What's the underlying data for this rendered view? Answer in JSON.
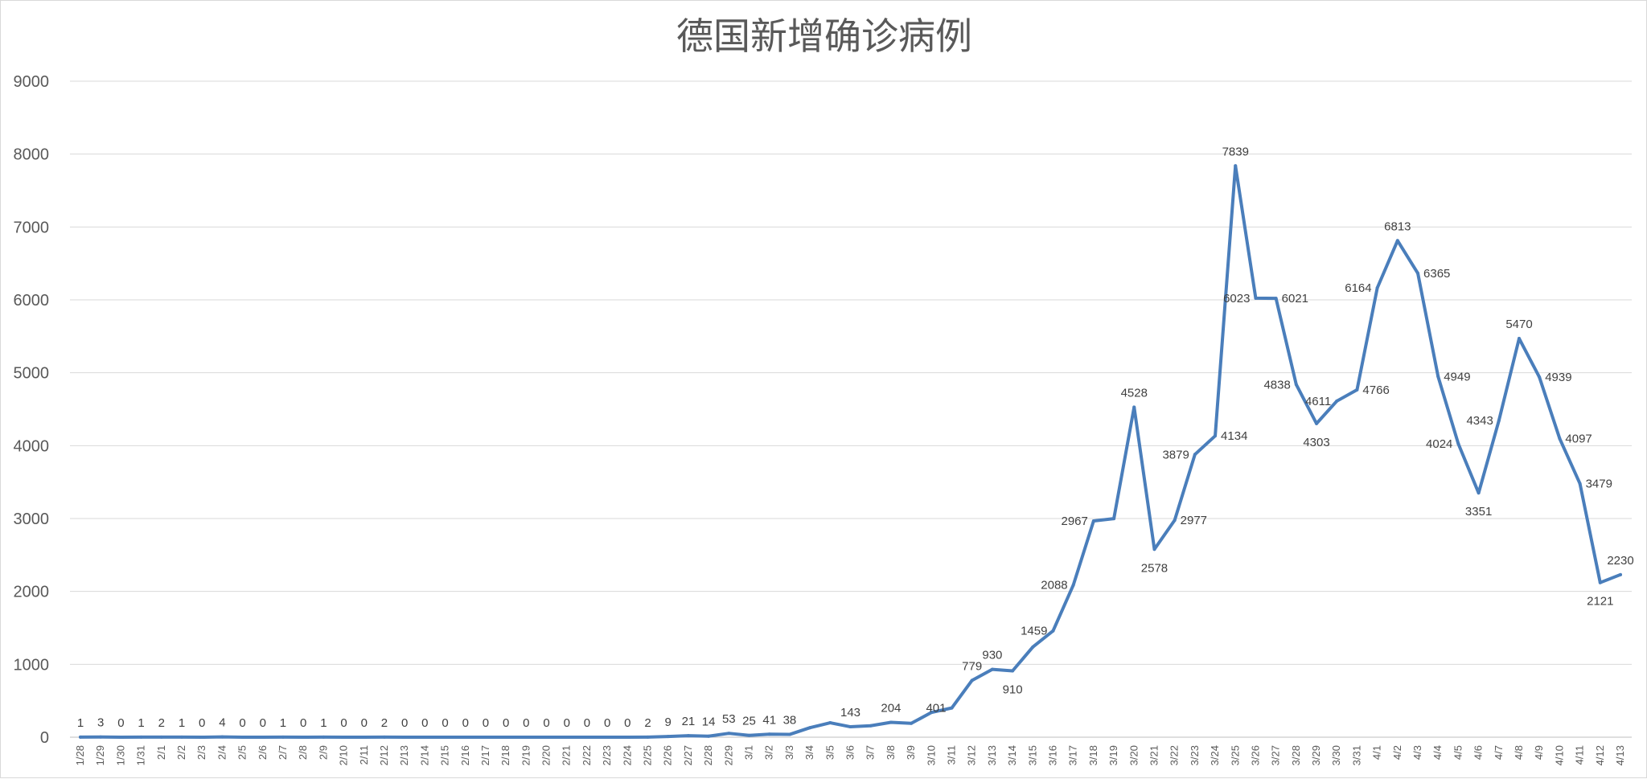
{
  "chart_data": {
    "type": "line",
    "title": "德国新增确诊病例",
    "xlabel": "",
    "ylabel": "",
    "ylim": [
      0,
      9000
    ],
    "yticks": [
      0,
      1000,
      2000,
      3000,
      4000,
      5000,
      6000,
      7000,
      8000,
      9000
    ],
    "grid": true,
    "legend": "none",
    "colors": {
      "line": "#4a7ebb",
      "grid": "#d9d9d9",
      "text": "#595959"
    },
    "categories": [
      "1/28",
      "1/29",
      "1/30",
      "1/31",
      "2/1",
      "2/2",
      "2/3",
      "2/4",
      "2/5",
      "2/6",
      "2/7",
      "2/8",
      "2/9",
      "2/10",
      "2/11",
      "2/12",
      "2/13",
      "2/14",
      "2/15",
      "2/16",
      "2/17",
      "2/18",
      "2/19",
      "2/20",
      "2/21",
      "2/22",
      "2/23",
      "2/24",
      "2/25",
      "2/26",
      "2/27",
      "2/28",
      "2/29",
      "3/1",
      "3/2",
      "3/3",
      "3/4",
      "3/5",
      "3/6",
      "3/7",
      "3/8",
      "3/9",
      "3/10",
      "3/11",
      "3/12",
      "3/13",
      "3/14",
      "3/15",
      "3/16",
      "3/17",
      "3/18",
      "3/19",
      "3/20",
      "3/21",
      "3/22",
      "3/23",
      "3/24",
      "3/25",
      "3/26",
      "3/27",
      "3/28",
      "3/29",
      "3/30",
      "3/31",
      "4/1",
      "4/2",
      "4/3",
      "4/4",
      "4/5",
      "4/6",
      "4/7",
      "4/8",
      "4/9",
      "4/10",
      "4/11",
      "4/12",
      "4/13"
    ],
    "values": [
      1,
      3,
      0,
      1,
      2,
      1,
      0,
      4,
      0,
      0,
      1,
      0,
      1,
      0,
      0,
      2,
      0,
      0,
      0,
      0,
      0,
      0,
      0,
      0,
      0,
      0,
      0,
      0,
      2,
      9,
      21,
      14,
      53,
      25,
      41,
      38,
      130,
      198,
      143,
      157,
      204,
      190,
      340,
      401,
      779,
      930,
      910,
      1237,
      1459,
      2088,
      2967,
      2999,
      4528,
      2578,
      2977,
      3879,
      4134,
      7839,
      6023,
      6021,
      4838,
      4303,
      4611,
      4766,
      6164,
      6813,
      6365,
      4949,
      4024,
      3351,
      4343,
      5470,
      4939,
      4097,
      3479,
      2121,
      2230
    ],
    "data_labels": [
      {
        "i": 0,
        "text": "1",
        "pos": "above"
      },
      {
        "i": 1,
        "text": "3",
        "pos": "above"
      },
      {
        "i": 2,
        "text": "0",
        "pos": "above"
      },
      {
        "i": 3,
        "text": "1",
        "pos": "above"
      },
      {
        "i": 4,
        "text": "2",
        "pos": "above"
      },
      {
        "i": 5,
        "text": "1",
        "pos": "above"
      },
      {
        "i": 6,
        "text": "0",
        "pos": "above"
      },
      {
        "i": 7,
        "text": "4",
        "pos": "above"
      },
      {
        "i": 8,
        "text": "0",
        "pos": "above"
      },
      {
        "i": 9,
        "text": "0",
        "pos": "above"
      },
      {
        "i": 10,
        "text": "1",
        "pos": "above"
      },
      {
        "i": 11,
        "text": "0",
        "pos": "above"
      },
      {
        "i": 12,
        "text": "1",
        "pos": "above"
      },
      {
        "i": 13,
        "text": "0",
        "pos": "above"
      },
      {
        "i": 14,
        "text": "0",
        "pos": "above"
      },
      {
        "i": 15,
        "text": "2",
        "pos": "above"
      },
      {
        "i": 16,
        "text": "0",
        "pos": "above"
      },
      {
        "i": 17,
        "text": "0",
        "pos": "above"
      },
      {
        "i": 18,
        "text": "0",
        "pos": "above"
      },
      {
        "i": 19,
        "text": "0",
        "pos": "above"
      },
      {
        "i": 20,
        "text": "0",
        "pos": "above"
      },
      {
        "i": 21,
        "text": "0",
        "pos": "above"
      },
      {
        "i": 22,
        "text": "0",
        "pos": "above"
      },
      {
        "i": 23,
        "text": "0",
        "pos": "above"
      },
      {
        "i": 24,
        "text": "0",
        "pos": "above"
      },
      {
        "i": 25,
        "text": "0",
        "pos": "above"
      },
      {
        "i": 26,
        "text": "0",
        "pos": "above"
      },
      {
        "i": 27,
        "text": "0",
        "pos": "above"
      },
      {
        "i": 28,
        "text": "2",
        "pos": "above"
      },
      {
        "i": 29,
        "text": "9",
        "pos": "above"
      },
      {
        "i": 30,
        "text": "21",
        "pos": "above"
      },
      {
        "i": 31,
        "text": "14",
        "pos": "above"
      },
      {
        "i": 32,
        "text": "53",
        "pos": "above"
      },
      {
        "i": 33,
        "text": "25",
        "pos": "above"
      },
      {
        "i": 34,
        "text": "41",
        "pos": "above"
      },
      {
        "i": 35,
        "text": "38",
        "pos": "above"
      },
      {
        "i": 38,
        "text": "143",
        "pos": "above"
      },
      {
        "i": 40,
        "text": "204",
        "pos": "above"
      },
      {
        "i": 43,
        "text": "401",
        "pos": "left"
      },
      {
        "i": 44,
        "text": "779",
        "pos": "above"
      },
      {
        "i": 45,
        "text": "930",
        "pos": "above"
      },
      {
        "i": 46,
        "text": "910",
        "pos": "below"
      },
      {
        "i": 48,
        "text": "1459",
        "pos": "left"
      },
      {
        "i": 49,
        "text": "2088",
        "pos": "left"
      },
      {
        "i": 50,
        "text": "2967",
        "pos": "left"
      },
      {
        "i": 52,
        "text": "4528",
        "pos": "above"
      },
      {
        "i": 53,
        "text": "2578",
        "pos": "below"
      },
      {
        "i": 54,
        "text": "2977",
        "pos": "right"
      },
      {
        "i": 55,
        "text": "3879",
        "pos": "left"
      },
      {
        "i": 56,
        "text": "4134",
        "pos": "right"
      },
      {
        "i": 57,
        "text": "7839",
        "pos": "above"
      },
      {
        "i": 58,
        "text": "6023",
        "pos": "left"
      },
      {
        "i": 59,
        "text": "6021",
        "pos": "right"
      },
      {
        "i": 60,
        "text": "4838",
        "pos": "left"
      },
      {
        "i": 61,
        "text": "4303",
        "pos": "below"
      },
      {
        "i": 62,
        "text": "4611",
        "pos": "left"
      },
      {
        "i": 63,
        "text": "4766",
        "pos": "right"
      },
      {
        "i": 64,
        "text": "6164",
        "pos": "left"
      },
      {
        "i": 65,
        "text": "6813",
        "pos": "above"
      },
      {
        "i": 66,
        "text": "6365",
        "pos": "right"
      },
      {
        "i": 67,
        "text": "4949",
        "pos": "right"
      },
      {
        "i": 68,
        "text": "4024",
        "pos": "left"
      },
      {
        "i": 69,
        "text": "3351",
        "pos": "below"
      },
      {
        "i": 70,
        "text": "4343",
        "pos": "left"
      },
      {
        "i": 71,
        "text": "5470",
        "pos": "above"
      },
      {
        "i": 72,
        "text": "4939",
        "pos": "right"
      },
      {
        "i": 73,
        "text": "4097",
        "pos": "right"
      },
      {
        "i": 74,
        "text": "3479",
        "pos": "right"
      },
      {
        "i": 75,
        "text": "2121",
        "pos": "below"
      },
      {
        "i": 76,
        "text": "2230",
        "pos": "above"
      }
    ]
  }
}
